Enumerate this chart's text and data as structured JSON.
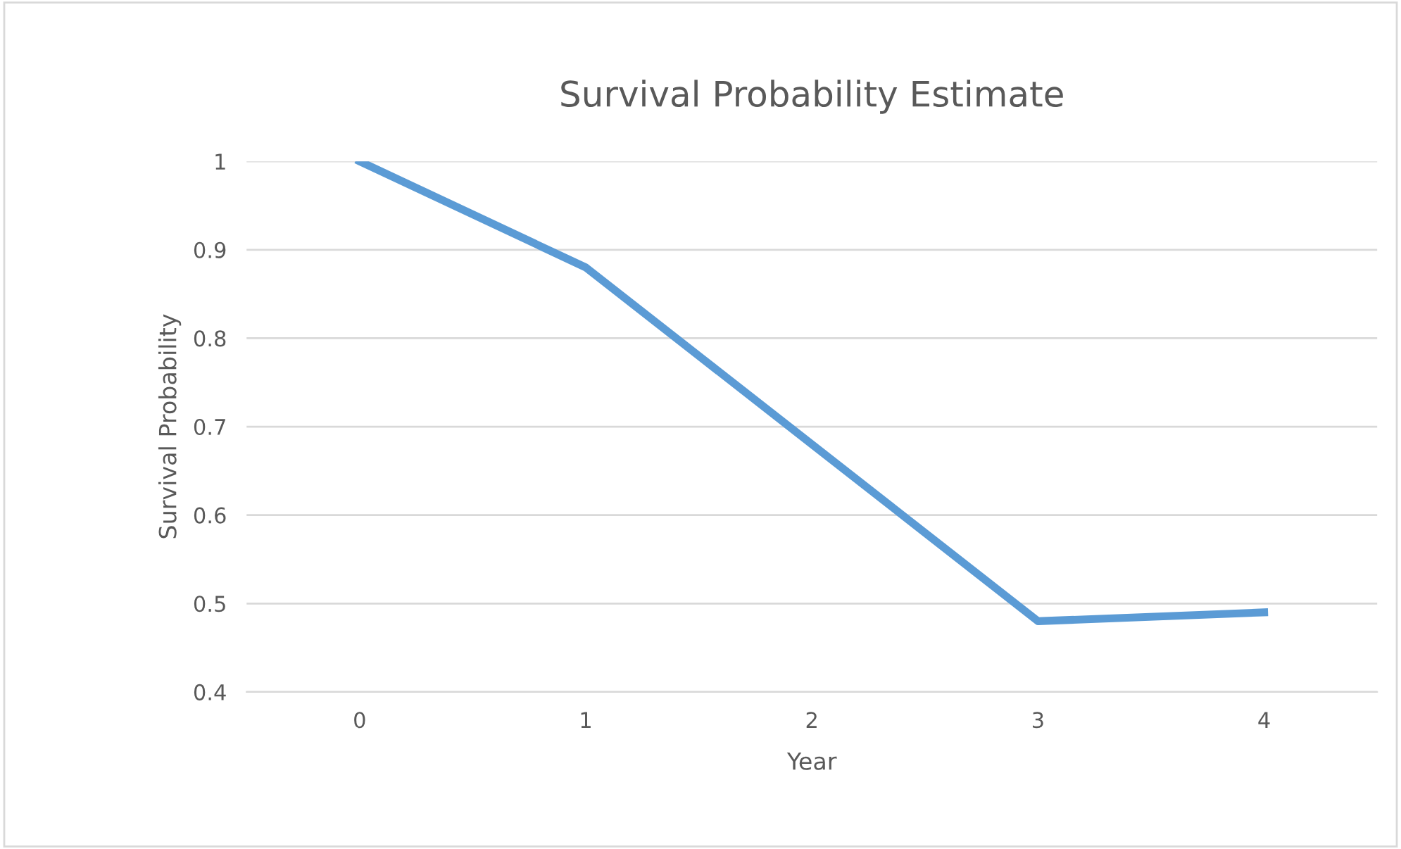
{
  "chart_data": {
    "type": "line",
    "title": "Survival Probability Estimate",
    "xlabel": "Year",
    "ylabel": "Survival Probability",
    "categories": [
      "0",
      "1",
      "2",
      "3",
      "4"
    ],
    "series": [
      {
        "color": "#5b9bd5",
        "values": [
          1.0,
          0.88,
          0.68,
          0.48,
          0.49
        ]
      }
    ],
    "ylim": [
      0.4,
      1
    ],
    "yticks": [
      0.4,
      0.5,
      0.6,
      0.7,
      0.8,
      0.9,
      1
    ],
    "grid": "y",
    "legend": false,
    "marker": "none",
    "line_style": "solid"
  }
}
